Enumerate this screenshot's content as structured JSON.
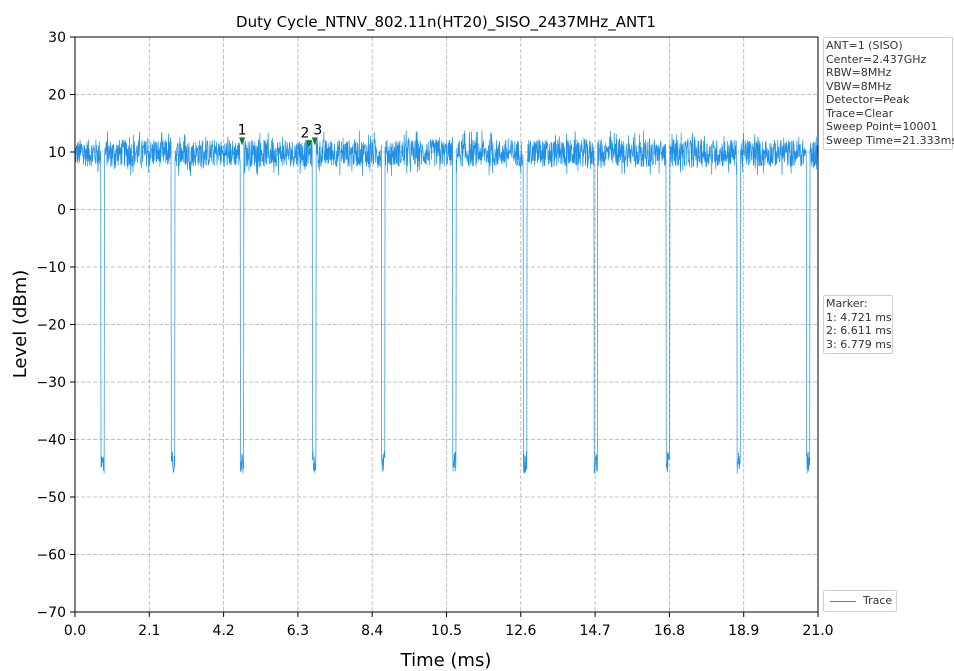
{
  "chart_data": {
    "type": "line",
    "title": "Duty Cycle_NTNV_802.11n(HT20)_SISO_2437MHz_ANT1",
    "xlabel": "Time (ms)",
    "ylabel": "Level (dBm)",
    "xlim": [
      0.0,
      21.0
    ],
    "ylim": [
      -70,
      30
    ],
    "xticks": [
      "0.0",
      "2.1",
      "4.2",
      "6.3",
      "8.4",
      "10.5",
      "12.6",
      "14.7",
      "16.8",
      "18.9",
      "21.0"
    ],
    "yticks": [
      "30",
      "20",
      "10",
      "0",
      "−10",
      "−20",
      "−30",
      "−40",
      "−50",
      "−60",
      "−70"
    ],
    "grid": true,
    "legend_position": "bottom-right outside",
    "series": [
      {
        "name": "Trace",
        "color": "#1e90e8",
        "baseline_level": 9.8,
        "noise_range": [
          6,
          14
        ],
        "dip_level": -44,
        "dip_times_ms": [
          0.78,
          2.77,
          4.72,
          6.76,
          8.71,
          10.72,
          12.72,
          14.72,
          16.76,
          18.76,
          20.72
        ]
      }
    ],
    "markers": [
      {
        "label": "1",
        "time_ms": 4.721,
        "level": 11.5
      },
      {
        "label": "2",
        "time_ms": 6.611,
        "level": 11.0
      },
      {
        "label": "3",
        "time_ms": 6.779,
        "level": 11.5
      }
    ],
    "marker_color": "#1a7a2a"
  },
  "info_box": {
    "lines": [
      "ANT=1 (SISO)",
      "Center=2.437GHz",
      "RBW=8MHz",
      "VBW=8MHz",
      "Detector=Peak",
      "Trace=Clear",
      "Sweep Point=10001",
      "Sweep Time=21.333ms"
    ]
  },
  "marker_box": {
    "lines": [
      "Marker:",
      "1: 4.721 ms",
      "2: 6.611 ms",
      "3: 6.779 ms"
    ]
  },
  "legend": {
    "label": "Trace"
  }
}
